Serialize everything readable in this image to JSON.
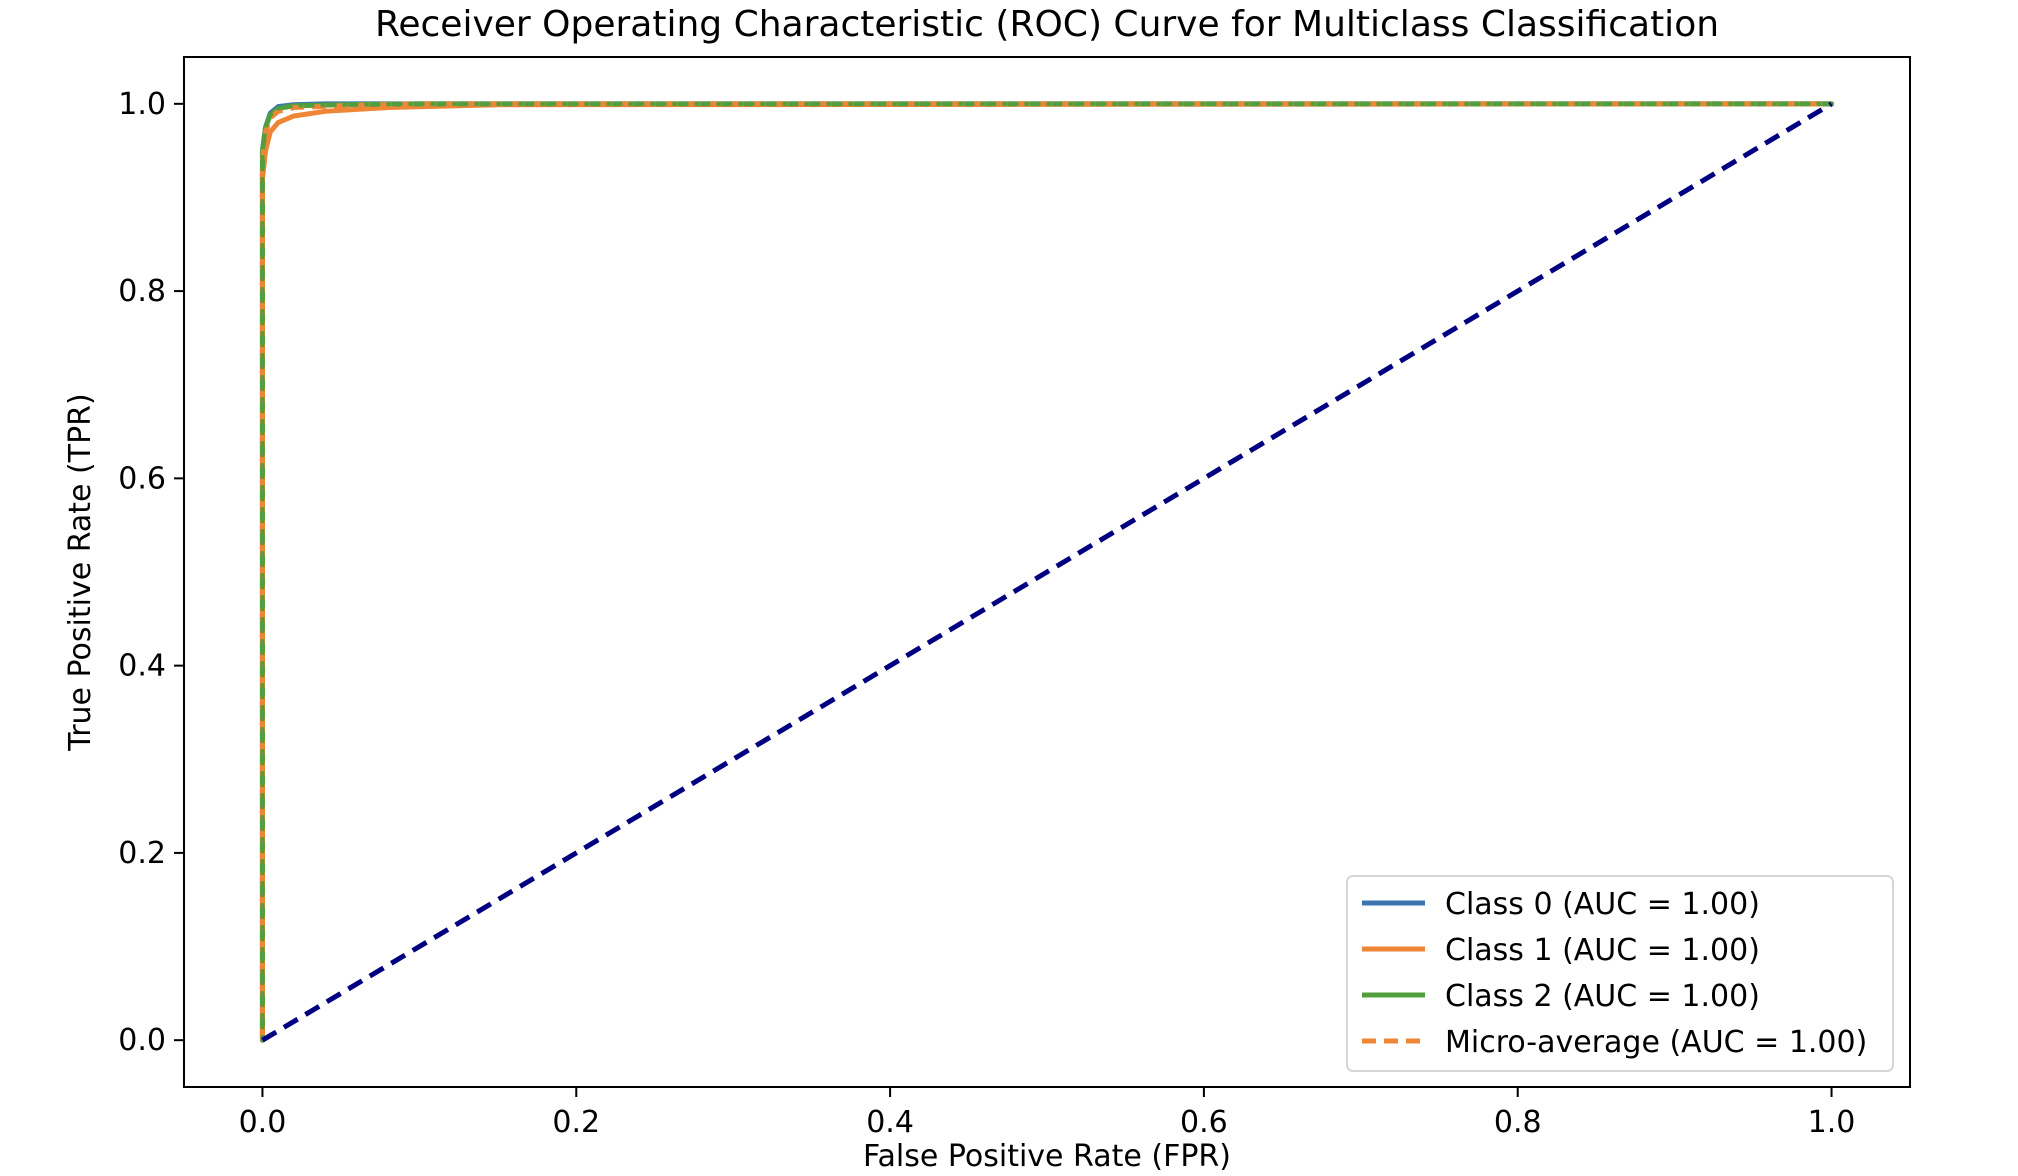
{
  "chart_data": {
    "type": "line",
    "title": "Receiver Operating Characteristic (ROC) Curve for Multiclass Classification",
    "xlabel": "False Positive Rate (FPR)",
    "ylabel": "True Positive Rate (TPR)",
    "xlim": [
      -0.05,
      1.05
    ],
    "ylim": [
      -0.05,
      1.05
    ],
    "x_ticks": [
      "0.0",
      "0.2",
      "0.4",
      "0.6",
      "0.8",
      "1.0"
    ],
    "x_tick_values": [
      0.0,
      0.2,
      0.4,
      0.6,
      0.8,
      1.0
    ],
    "y_ticks": [
      "0.0",
      "0.2",
      "0.4",
      "0.6",
      "0.8",
      "1.0"
    ],
    "y_tick_values": [
      0.0,
      0.2,
      0.4,
      0.6,
      0.8,
      1.0
    ],
    "grid": false,
    "legend_position": "lower-right",
    "series": [
      {
        "name": "Class 0 (AUC = 1.00)",
        "color": "#3b75af",
        "style": "solid",
        "x": [
          0.0,
          0.0,
          0.0,
          0.002,
          0.005,
          0.01,
          0.02,
          0.04,
          0.1,
          1.0
        ],
        "y": [
          0.0,
          0.85,
          0.95,
          0.975,
          0.99,
          0.997,
          0.999,
          1.0,
          1.0,
          1.0
        ]
      },
      {
        "name": "Class 1 (AUC = 1.00)",
        "color": "#ef8636",
        "style": "solid",
        "x": [
          0.0,
          0.0,
          0.0,
          0.002,
          0.005,
          0.01,
          0.02,
          0.04,
          0.08,
          0.15,
          1.0
        ],
        "y": [
          0.0,
          0.85,
          0.92,
          0.95,
          0.97,
          0.98,
          0.987,
          0.992,
          0.996,
          0.999,
          1.0
        ]
      },
      {
        "name": "Class 2 (AUC = 1.00)",
        "color": "#519e3e",
        "style": "solid",
        "x": [
          0.0,
          0.0,
          0.0,
          0.002,
          0.005,
          0.01,
          0.02,
          0.05,
          0.1,
          1.0
        ],
        "y": [
          0.0,
          0.88,
          0.95,
          0.975,
          0.988,
          0.995,
          0.998,
          0.999,
          1.0,
          1.0
        ]
      },
      {
        "name": "Micro-average (AUC = 1.00)",
        "color": "#ef8636",
        "style": "dashed",
        "x": [
          0.0,
          0.0,
          0.0,
          0.002,
          0.005,
          0.01,
          0.02,
          0.05,
          0.1,
          1.0
        ],
        "y": [
          0.0,
          0.86,
          0.94,
          0.97,
          0.985,
          0.992,
          0.996,
          0.998,
          1.0,
          1.0
        ]
      }
    ],
    "reference_line": {
      "color": "#000080",
      "style": "dashed",
      "x": [
        0.0,
        1.0
      ],
      "y": [
        0.0,
        1.0
      ]
    },
    "green_dotted_overlay_color": "#519e3e"
  }
}
